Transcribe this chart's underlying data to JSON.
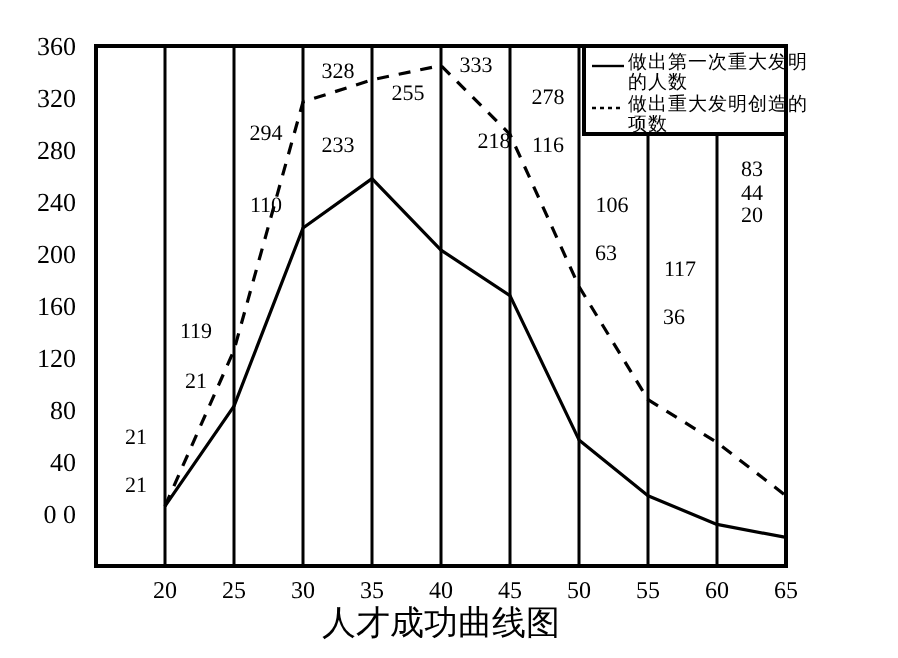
{
  "chart_data": {
    "type": "line",
    "title": "人才成功曲线图",
    "x": [
      20,
      25,
      30,
      35,
      40,
      45,
      50,
      55,
      60,
      65
    ],
    "series": [
      {
        "name": "做出第一次重大发明的人数",
        "color": "#000000",
        "line_style": "solid",
        "values": [
          6,
          83,
          220,
          258,
          203,
          168,
          57,
          14,
          -8,
          -18
        ]
      },
      {
        "name": "做出重大发明创造的项数",
        "color": "#000000",
        "line_style": "dashed",
        "values": [
          6,
          126,
          317,
          334,
          345,
          292,
          175,
          88,
          55,
          14
        ]
      }
    ],
    "xlim": [
      15,
      65
    ],
    "xticks": [
      20,
      25,
      30,
      35,
      40,
      45,
      50,
      55,
      60,
      65
    ],
    "ylim": [
      -40,
      360
    ],
    "yticks": [
      {
        "value": 0,
        "label": "0 0"
      },
      40,
      80,
      120,
      160,
      200,
      240,
      280,
      320,
      360
    ],
    "grid": "x",
    "legend": "top right",
    "marker": "none",
    "annotations": [
      "21",
      "21",
      "119",
      "21",
      "294",
      "110",
      "328",
      "233",
      "255",
      "333",
      "218",
      "278",
      "116",
      "106",
      "63",
      "117",
      "36",
      "83",
      "44",
      "20"
    ]
  }
}
